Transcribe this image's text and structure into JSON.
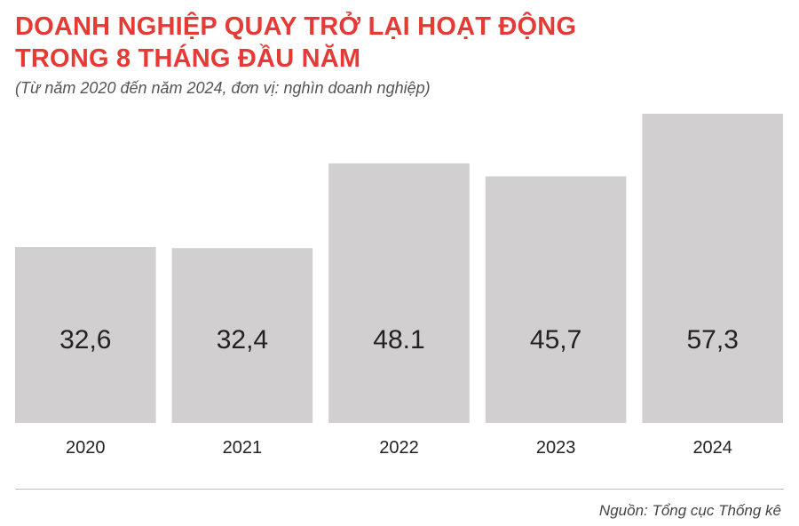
{
  "header": {
    "title_line1": "DOANH NGHIỆP QUAY TRỞ LẠI HOẠT ĐỘNG",
    "title_line2": "TRONG 8 THÁNG ĐẦU NĂM",
    "subtitle": "(Từ năm 2020 đến năm 2024, đơn vị: nghìn doanh nghiệp)"
  },
  "footer": {
    "source": "Nguồn: Tổng cục Thống kê"
  },
  "colors": {
    "title": "#e53a35",
    "bar": "#d2cfd1",
    "text": "#222222"
  },
  "chart_data": {
    "type": "bar",
    "categories": [
      "2020",
      "2021",
      "2022",
      "2023",
      "2024"
    ],
    "values": [
      32.6,
      32.4,
      48.1,
      45.7,
      57.3
    ],
    "value_labels": [
      "32,6",
      "32,4",
      "48.1",
      "45,7",
      "57,3"
    ],
    "ylim": [
      0,
      60
    ],
    "grid": false,
    "legend": "none"
  }
}
